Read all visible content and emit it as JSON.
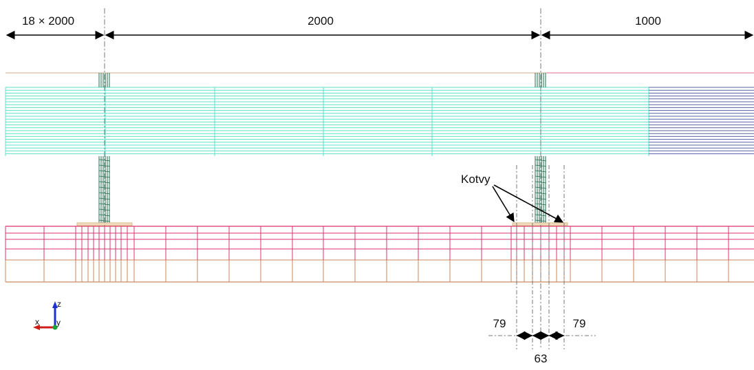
{
  "dimensions": {
    "top": [
      {
        "label": "18 × 2000"
      },
      {
        "label": "2000"
      },
      {
        "label": "1000"
      }
    ],
    "bottom_left": "79",
    "bottom_right": "79",
    "bottom_center": "63"
  },
  "annotation": {
    "label": "Kotvy"
  },
  "axes_triad": {
    "z": "z",
    "x": "x",
    "y": "y"
  },
  "colors": {
    "deck_fine": "#59e3c7",
    "deck_dark": "#5560a4",
    "column": "#1f6b4a",
    "beam_red": "#d9336b",
    "beam_brown": "#c98a5c",
    "top_brown": "#d6a888",
    "top_red": "#e06a8a",
    "centerline": "#777777",
    "dim": "#000000",
    "axis_z": "#1e2fd0",
    "axis_x": "#d11a1a",
    "axis_y": "#19a339"
  }
}
